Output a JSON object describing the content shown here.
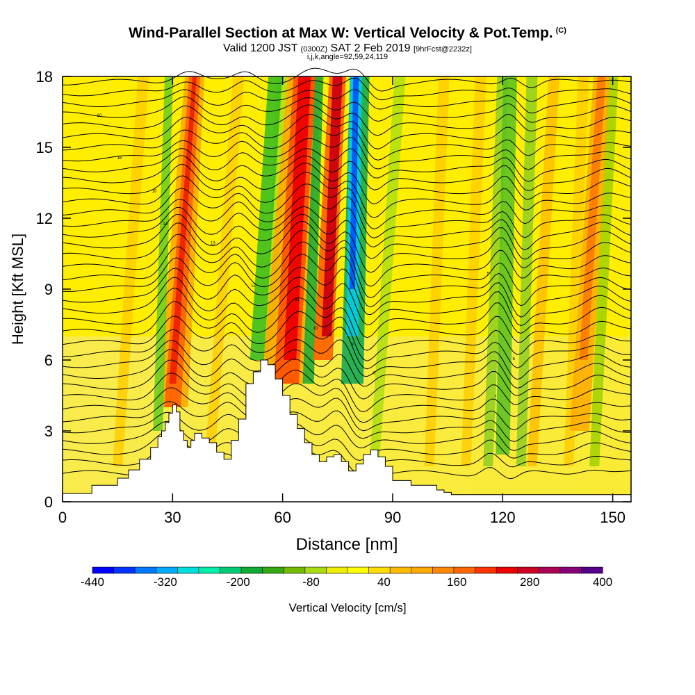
{
  "header": {
    "title": "Wind-Parallel Section at Max W: Vertical Velocity & Pot.Temp.",
    "copyright_mark": "(C)",
    "valid_prefix": "Valid 1200 JST",
    "valid_utc": "(0300Z)",
    "valid_date": "SAT 2 Feb 2019",
    "forecast_info": "[9hrFcst@2232z]",
    "indices": "i,j,k,angle=92,59,24,119"
  },
  "chart_data": {
    "type": "heatmap",
    "xlabel": "Distance [nm]",
    "ylabel": "Height [Kft MSL]",
    "xlim": [
      0,
      155
    ],
    "ylim": [
      0,
      18
    ],
    "x_ticks": [
      0,
      30,
      60,
      90,
      120,
      150
    ],
    "y_ticks": [
      0,
      3,
      6,
      9,
      12,
      15,
      18
    ],
    "colorbar": {
      "label": "Vertical Velocity [cm/s]",
      "range": [
        -440,
        400
      ],
      "tick_labels": [
        -440,
        -320,
        -200,
        -80,
        40,
        160,
        280,
        400
      ],
      "colors": [
        "#0000ff",
        "#0033ff",
        "#0077ff",
        "#00aaff",
        "#00dddd",
        "#00eeaa",
        "#00cc77",
        "#11aa33",
        "#33aa11",
        "#77bb00",
        "#aadd11",
        "#eeee00",
        "#ffff00",
        "#ffdd00",
        "#ffbb00",
        "#ffaa00",
        "#ff8800",
        "#ff6600",
        "#ff3300",
        "#ee0000",
        "#cc0022",
        "#aa0055",
        "#880077",
        "#550088"
      ]
    },
    "updraft_centers_nm": [
      32,
      64,
      75,
      147
    ],
    "downdraft_centers_nm": [
      80
    ],
    "terrain_profile": {
      "x": [
        0,
        8,
        15,
        18,
        21,
        24,
        26,
        27,
        28,
        29,
        30,
        31,
        32,
        33,
        34,
        35,
        36,
        38,
        40,
        42,
        44,
        46,
        48,
        50,
        52,
        54,
        56,
        58,
        60,
        62,
        64,
        66,
        68,
        70,
        72,
        74,
        76,
        78,
        80,
        82,
        84,
        86,
        88,
        90,
        95,
        100,
        102,
        104,
        106,
        108,
        110,
        155
      ],
      "y": [
        0.35,
        0.7,
        1.0,
        1.35,
        1.8,
        2.3,
        2.75,
        3.0,
        3.35,
        3.75,
        4.1,
        3.8,
        3.0,
        2.6,
        2.3,
        2.6,
        2.9,
        2.7,
        2.5,
        2.1,
        1.8,
        2.6,
        3.5,
        5.0,
        5.5,
        6.0,
        5.8,
        5.2,
        4.5,
        3.7,
        3.1,
        2.5,
        2.0,
        1.7,
        1.9,
        2.0,
        1.7,
        1.3,
        1.6,
        2.0,
        2.2,
        1.9,
        1.5,
        0.9,
        0.7,
        0.7,
        0.5,
        0.4,
        0.3,
        0.3,
        0.3,
        0.3
      ]
    },
    "isentrope_labels": [
      "10",
      "16",
      "15",
      "14",
      "13",
      "12",
      "11",
      "10",
      "9",
      "8",
      "7",
      "6",
      "5"
    ]
  }
}
